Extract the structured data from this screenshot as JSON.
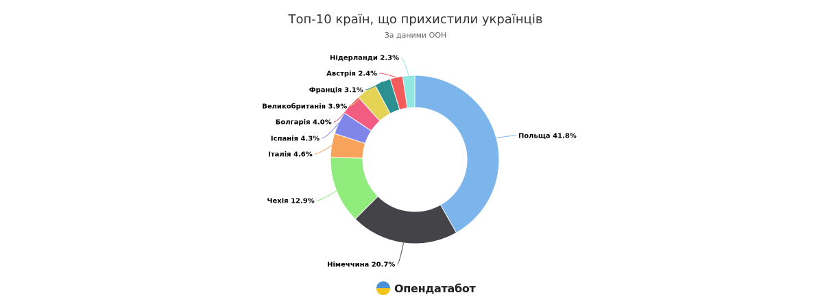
{
  "chart_data": {
    "type": "pie",
    "variant": "donut",
    "title": "Топ-10 країн, що прихистили українців",
    "subtitle": "За даними ООН",
    "unit": "%",
    "start_angle_deg": 0,
    "direction": "clockwise",
    "slices": [
      {
        "label": "Польща 41.8%",
        "value": 41.8,
        "color": "#7cb5ec"
      },
      {
        "label": "Німеччина 20.7%",
        "value": 20.7,
        "color": "#434348"
      },
      {
        "label": "Чехія 12.9%",
        "value": 12.9,
        "color": "#90ed7d"
      },
      {
        "label": "Італія 4.6%",
        "value": 4.6,
        "color": "#f7a35c"
      },
      {
        "label": "Іспанія 4.3%",
        "value": 4.3,
        "color": "#8085e9"
      },
      {
        "label": "Болгарія 4.0%",
        "value": 4.0,
        "color": "#f15c80"
      },
      {
        "label": "Великобританія 3.9%",
        "value": 3.9,
        "color": "#e4d354"
      },
      {
        "label": "Франція 3.1%",
        "value": 3.1,
        "color": "#2b908f"
      },
      {
        "label": "Австрія 2.4%",
        "value": 2.4,
        "color": "#f45b5b"
      },
      {
        "label": "Нідерланди 2.3%",
        "value": 2.3,
        "color": "#91e8e1"
      }
    ]
  },
  "brand": {
    "name": "Опендатабот",
    "icon": "opendatabot-logo-icon",
    "colors": {
      "top": "#4a90d9",
      "bottom": "#f5c518"
    }
  }
}
